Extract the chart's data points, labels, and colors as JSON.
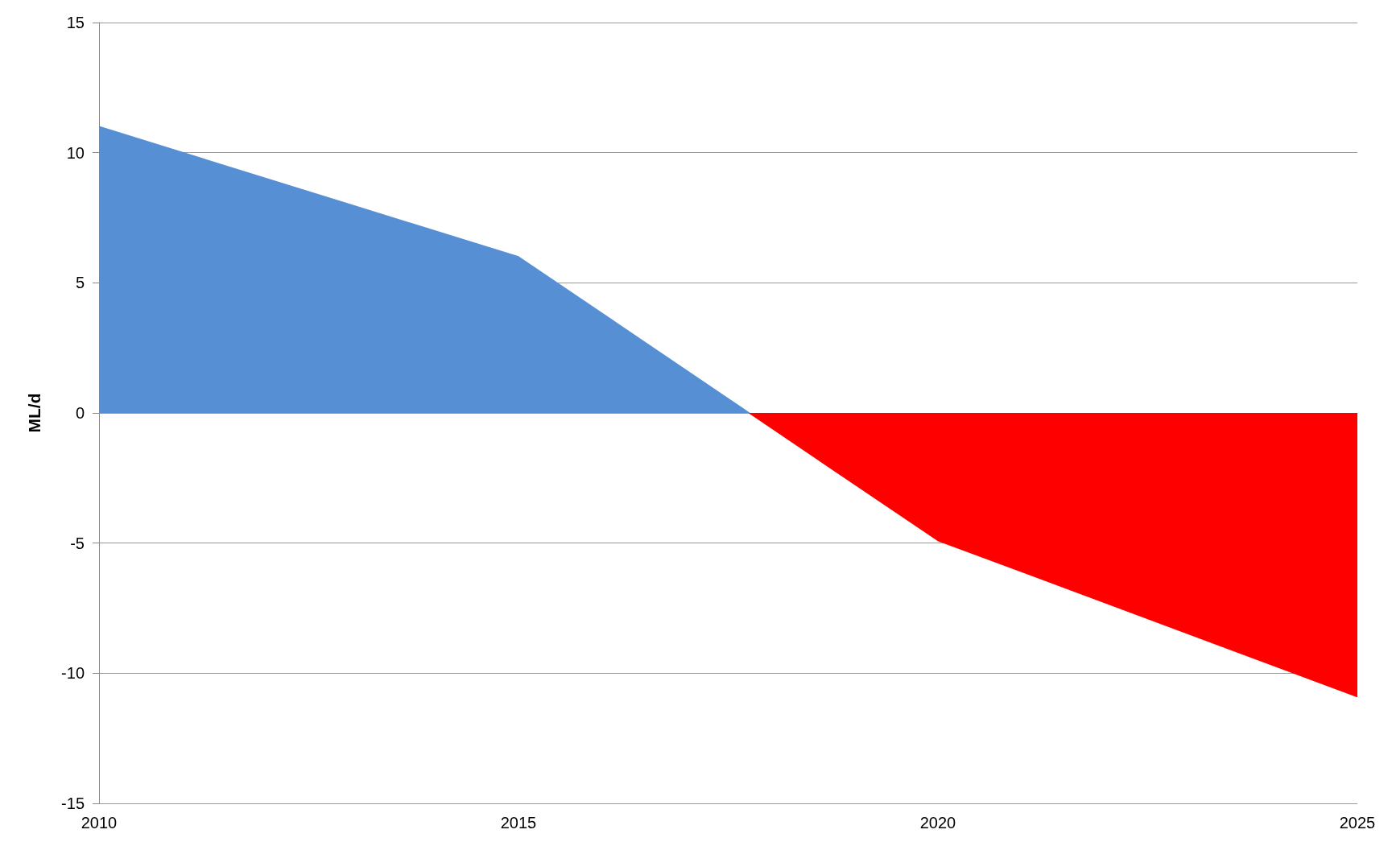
{
  "chart_data": {
    "type": "area",
    "ylabel": "ML/d",
    "xlim": [
      2010,
      2025
    ],
    "xticks": [
      2010,
      2015,
      2020,
      2025
    ],
    "ylim": [
      -15,
      15
    ],
    "yticks": [
      -15,
      -10,
      -5,
      0,
      5,
      10,
      15
    ],
    "grid": "y",
    "marker": "none",
    "series": [
      {
        "color": "#578fd5",
        "x": [
          2010,
          2015,
          2017.75
        ],
        "values": [
          11,
          6,
          0
        ]
      },
      {
        "color": "#ff0000",
        "x": [
          2017.75,
          2020,
          2025
        ],
        "values": [
          0,
          -4.9,
          -10.9
        ]
      }
    ]
  }
}
